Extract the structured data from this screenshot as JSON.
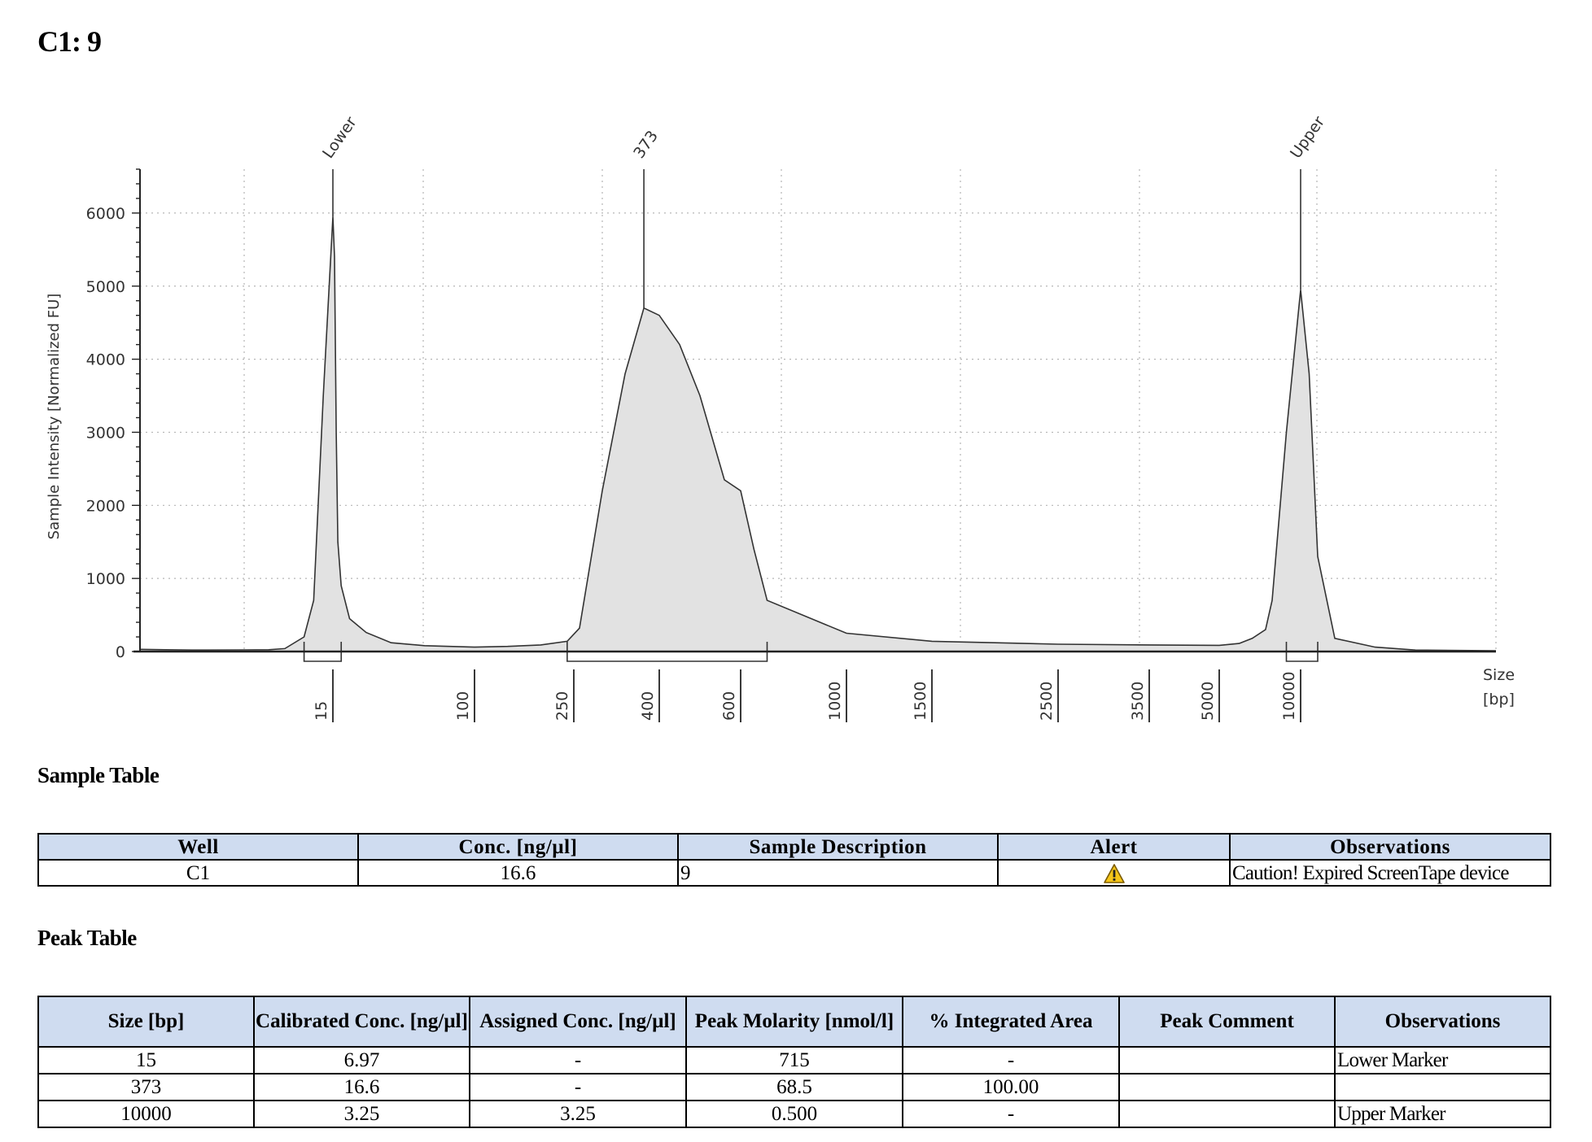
{
  "page": {
    "title": "C1: 9"
  },
  "chart_data": {
    "type": "area",
    "xlabel": "Size",
    "xunit": "[bp]",
    "ylabel": "Sample Intensity [Normalized FU]",
    "ylim": [
      0,
      6600
    ],
    "yticks": [
      0,
      1000,
      2000,
      3000,
      4000,
      5000,
      6000
    ],
    "x_scale": "categorical-size-ladder",
    "x_ticks": [
      "15",
      "100",
      "250",
      "400",
      "600",
      "1000",
      "1500",
      "2500",
      "3500",
      "5000",
      "10000"
    ],
    "grid": true,
    "peak_labels": [
      "Lower",
      "373",
      "Upper"
    ],
    "peaks": [
      {
        "label": "Lower",
        "size_bp": 15,
        "height": 5950
      },
      {
        "label": "373",
        "size_bp": 373,
        "height": 4700
      },
      {
        "label": "Upper",
        "size_bp": 10000,
        "height": 4950
      }
    ],
    "series": [
      {
        "x": [
          "1",
          "2",
          "3",
          "5",
          "8",
          "10",
          "12",
          "13",
          "14",
          "15",
          "16",
          "17",
          "18",
          "20",
          "25",
          "35",
          "50",
          "70",
          "100",
          "150",
          "200",
          "240",
          "260",
          "300",
          "340",
          "373",
          "400",
          "450",
          "500",
          "560",
          "600",
          "650",
          "700",
          "1000",
          "1500",
          "2000",
          "2500",
          "3500",
          "5000",
          "6500",
          "7500",
          "8500",
          "9000",
          "9500",
          "10000",
          "10500",
          "11000",
          "12000",
          "14000",
          "16000",
          "20000"
        ],
        "y": [
          30,
          25,
          20,
          22,
          25,
          40,
          200,
          700,
          3500,
          5950,
          5400,
          3000,
          1500,
          900,
          450,
          260,
          120,
          80,
          60,
          70,
          90,
          140,
          320,
          2200,
          3800,
          4700,
          4600,
          4200,
          3500,
          2350,
          2200,
          1400,
          700,
          250,
          140,
          120,
          100,
          90,
          85,
          110,
          180,
          300,
          700,
          3000,
          4950,
          3800,
          1300,
          180,
          60,
          20,
          10
        ]
      }
    ]
  },
  "sample_table": {
    "title": "Sample Table",
    "headers": [
      "Well",
      "Conc. [ng/µl]",
      "Sample Description",
      "Alert",
      "Observations"
    ],
    "rows": [
      {
        "well": "C1",
        "conc": "16.6",
        "description": "9",
        "alert_icon": "warning-triangle-icon",
        "observations": "Caution! Expired ScreenTape device"
      }
    ]
  },
  "peak_table": {
    "title": "Peak Table",
    "headers": [
      "Size [bp]",
      "Calibrated Conc. [ng/µl]",
      "Assigned Conc. [ng/µl]",
      "Peak Molarity [nmol/l]",
      "% Integrated Area",
      "Peak Comment",
      "Observations"
    ],
    "rows": [
      {
        "size": "15",
        "calibrated_conc": "6.97",
        "assigned_conc": "-",
        "molarity": "715",
        "integrated_area": "-",
        "comment": "",
        "observations": "Lower Marker"
      },
      {
        "size": "373",
        "calibrated_conc": "16.6",
        "assigned_conc": "-",
        "molarity": "68.5",
        "integrated_area": "100.00",
        "comment": "",
        "observations": ""
      },
      {
        "size": "10000",
        "calibrated_conc": "3.25",
        "assigned_conc": "3.25",
        "molarity": "0.500",
        "integrated_area": "-",
        "comment": "",
        "observations": "Upper Marker"
      }
    ]
  }
}
